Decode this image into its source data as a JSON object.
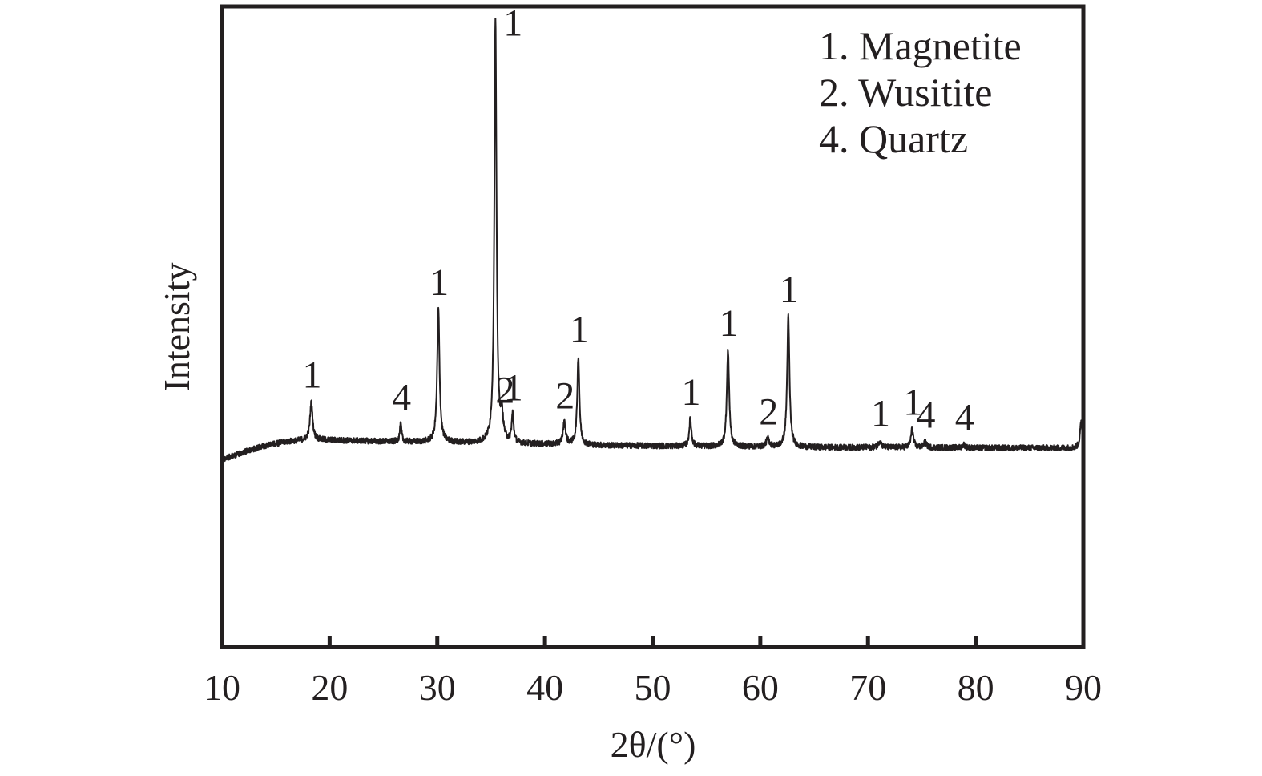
{
  "chart_data": {
    "type": "line",
    "title": "",
    "xlabel": "2θ/(°)",
    "ylabel": "Intensity",
    "xlim": [
      10,
      90
    ],
    "xticks": [
      "10",
      "20",
      "30",
      "40",
      "50",
      "60",
      "70",
      "80",
      "90"
    ],
    "y_tick_labels_shown": false,
    "grid": false,
    "legend_placement": "top-right",
    "legend": [
      {
        "id": "1",
        "label": "1. Magnetite"
      },
      {
        "id": "2",
        "label": "2. Wusitite"
      },
      {
        "id": "4",
        "label": "4. Quartz"
      }
    ],
    "line_color": "#231f20",
    "baseline": [
      {
        "x": 10.0,
        "y": 0.0
      },
      {
        "x": 12.0,
        "y": 1.4
      },
      {
        "x": 14.0,
        "y": 2.6
      },
      {
        "x": 16.0,
        "y": 3.4
      },
      {
        "x": 18.0,
        "y": 3.8
      },
      {
        "x": 22.0,
        "y": 3.6
      },
      {
        "x": 26.0,
        "y": 3.4
      },
      {
        "x": 30.0,
        "y": 3.3
      },
      {
        "x": 35.0,
        "y": 3.1
      },
      {
        "x": 40.0,
        "y": 2.9
      },
      {
        "x": 45.0,
        "y": 2.7
      },
      {
        "x": 50.0,
        "y": 2.6
      },
      {
        "x": 55.0,
        "y": 2.5
      },
      {
        "x": 60.0,
        "y": 2.4
      },
      {
        "x": 65.0,
        "y": 2.3
      },
      {
        "x": 70.0,
        "y": 2.3
      },
      {
        "x": 75.0,
        "y": 2.3
      },
      {
        "x": 80.0,
        "y": 2.2
      },
      {
        "x": 85.0,
        "y": 2.2
      },
      {
        "x": 89.0,
        "y": 2.2
      },
      {
        "x": 90.0,
        "y": 2.3
      }
    ],
    "peaks": [
      {
        "x": 18.3,
        "height": 7.2,
        "width": 0.14,
        "label": "1"
      },
      {
        "x": 26.6,
        "height": 3.3,
        "width": 0.1,
        "label": "4"
      },
      {
        "x": 30.1,
        "height": 25.5,
        "width": 0.13,
        "label": "1"
      },
      {
        "x": 35.4,
        "height": 81.0,
        "width": 0.12,
        "label": "1"
      },
      {
        "x": 36.0,
        "height": 4.4,
        "width": 0.15,
        "label": "2"
      },
      {
        "x": 37.0,
        "height": 5.5,
        "width": 0.11,
        "label": "1"
      },
      {
        "x": 41.8,
        "height": 4.2,
        "width": 0.15,
        "label": "2"
      },
      {
        "x": 43.1,
        "height": 17.0,
        "width": 0.12,
        "label": "1"
      },
      {
        "x": 53.5,
        "height": 5.2,
        "width": 0.12,
        "label": "1"
      },
      {
        "x": 57.0,
        "height": 18.5,
        "width": 0.13,
        "label": "1"
      },
      {
        "x": 60.7,
        "height": 1.5,
        "width": 0.18,
        "label": "2"
      },
      {
        "x": 62.6,
        "height": 25.0,
        "width": 0.13,
        "label": "1"
      },
      {
        "x": 71.1,
        "height": 1.3,
        "width": 0.15,
        "label": "1"
      },
      {
        "x": 74.1,
        "height": 3.5,
        "width": 0.13,
        "label": "1"
      },
      {
        "x": 75.3,
        "height": 1.0,
        "width": 0.15,
        "label": "4"
      },
      {
        "x": 78.9,
        "height": 0.6,
        "width": 0.15,
        "label": "4"
      },
      {
        "x": 89.8,
        "height": 5.0,
        "width": 0.12,
        "label": ""
      }
    ]
  }
}
